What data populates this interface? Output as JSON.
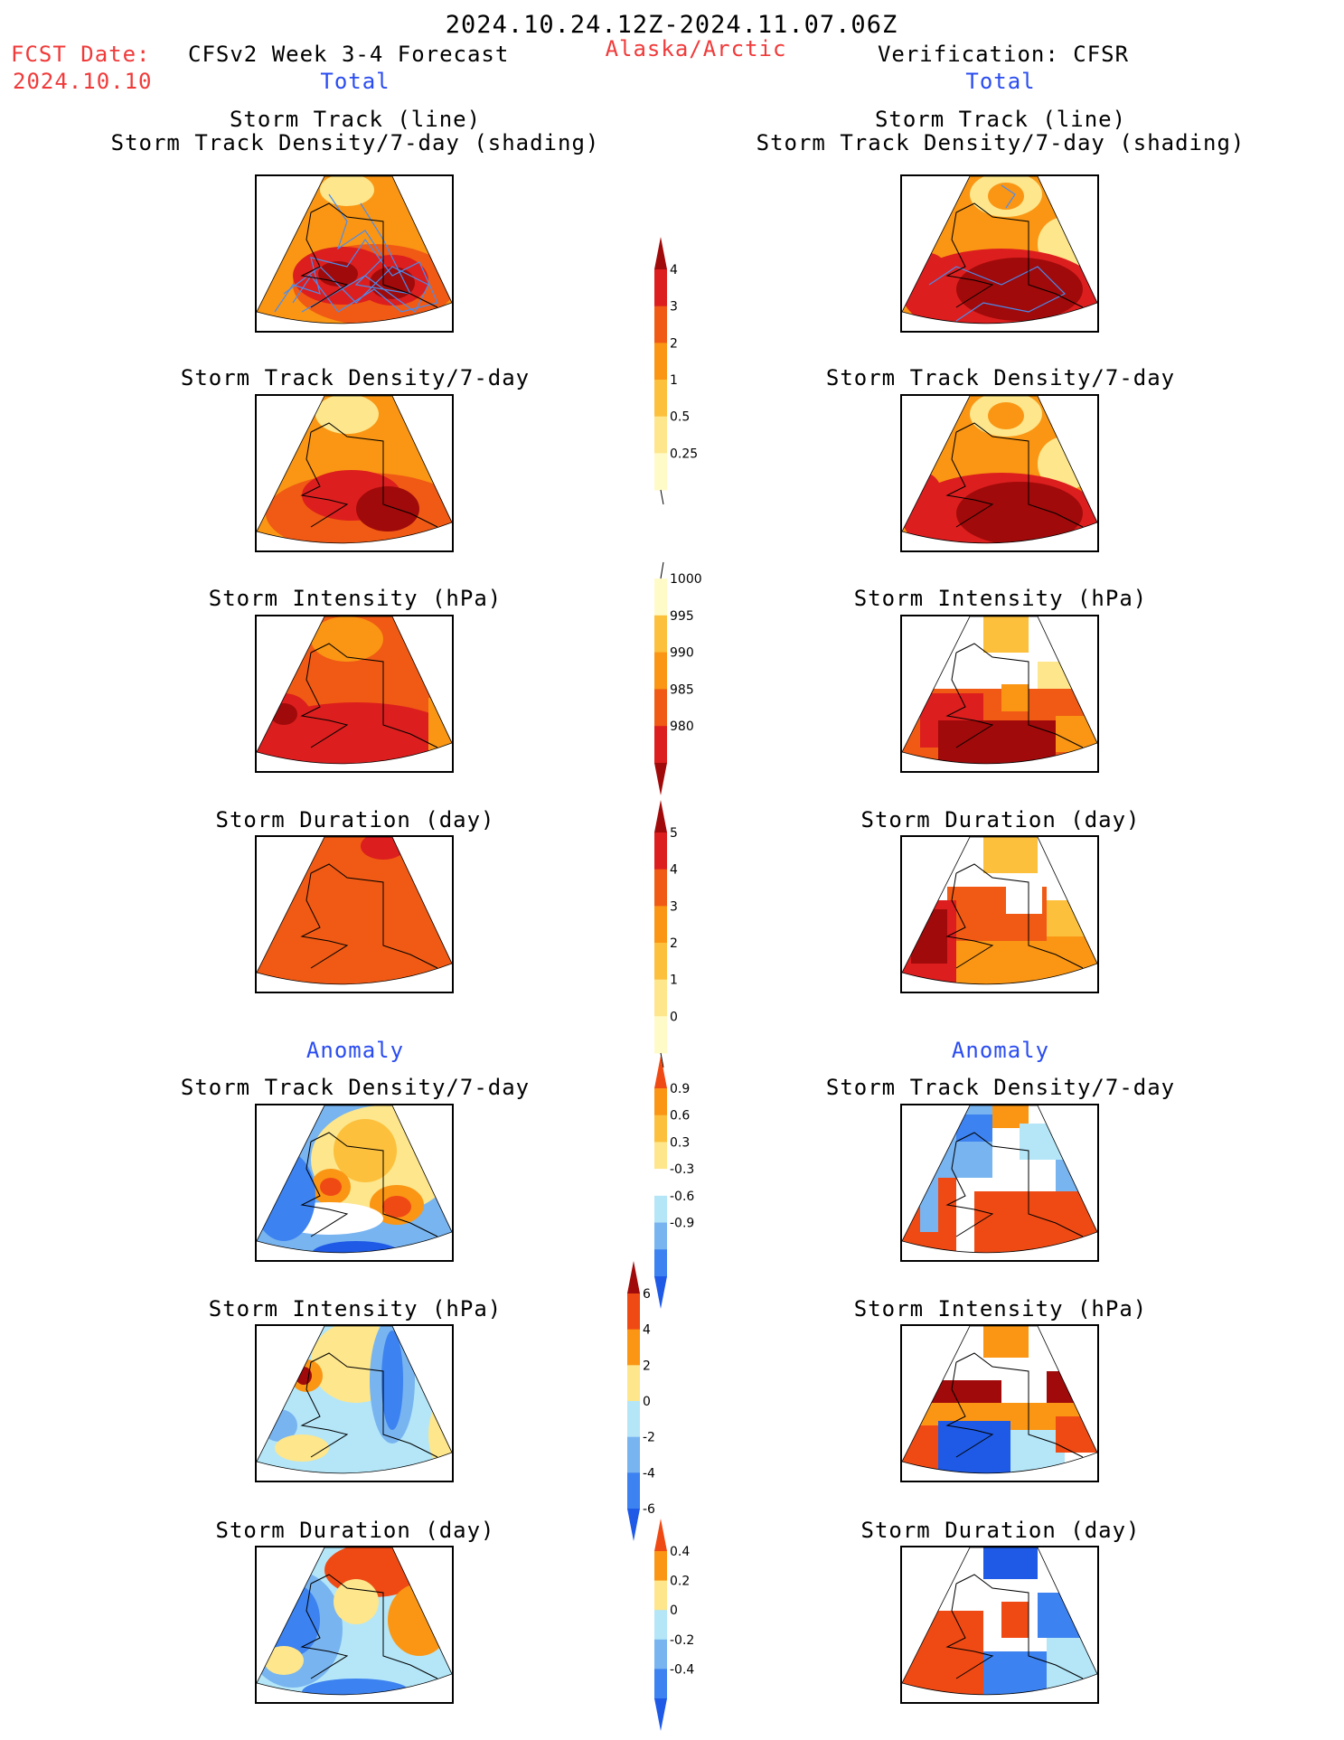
{
  "header": {
    "date_range": "2024.10.24.12Z-2024.11.07.06Z",
    "fcst_label": "FCST Date:",
    "fcst_date": "2024.10.10",
    "model": "CFSv2 Week 3-4 Forecast",
    "region": "Alaska/Arctic",
    "verification": "Verification: CFSR"
  },
  "sections": {
    "total": "Total",
    "anomaly": "Anomaly"
  },
  "panel_titles": {
    "track_line": "Storm Track (line)",
    "track_shading": "Storm Track Density/7-day (shading)",
    "density": "Storm Track Density/7-day",
    "intensity": "Storm Intensity (hPa)",
    "duration": "Storm Duration (day)"
  },
  "colorbars": {
    "density_total": {
      "labels": [
        "4",
        "3",
        "2",
        "1",
        "0.5",
        "0.25"
      ],
      "colors": [
        "#a00a0a",
        "#dc1e1e",
        "#f05a14",
        "#fa9614",
        "#fcc03c",
        "#fde68c",
        "#fffbc8"
      ]
    },
    "intensity_total": {
      "labels": [
        "1000",
        "995",
        "990",
        "985",
        "980"
      ],
      "colors": [
        "#fffbc8",
        "#fcc03c",
        "#fa9614",
        "#f05a14",
        "#dc1e1e",
        "#a00a0a"
      ]
    },
    "duration_total": {
      "labels": [
        "5",
        "4",
        "3",
        "2",
        "1",
        "0"
      ],
      "colors": [
        "#a00a0a",
        "#dc1e1e",
        "#f05a14",
        "#fa9614",
        "#fcc03c",
        "#fde68c",
        "#fffbc8"
      ]
    },
    "density_anom": {
      "labels": [
        "0.9",
        "0.6",
        "0.3",
        "-0.3",
        "-0.6",
        "-0.9"
      ],
      "colors": [
        "#f04a14",
        "#fa9614",
        "#fcc03c",
        "#fde68c",
        "#ffffff",
        "#b4e6f8",
        "#78b4f0",
        "#3c82f0",
        "#1e5ae6"
      ]
    },
    "intensity_anom": {
      "labels": [
        "6",
        "4",
        "2",
        "0",
        "-2",
        "-4",
        "-6"
      ],
      "colors": [
        "#a00a0a",
        "#f04a14",
        "#fa9614",
        "#fde68c",
        "#b4e6f8",
        "#78b4f0",
        "#3c82f0",
        "#1e5ae6"
      ]
    },
    "duration_anom": {
      "labels": [
        "0.4",
        "0.2",
        "0",
        "-0.2",
        "-0.4"
      ],
      "colors": [
        "#f04a14",
        "#fa9614",
        "#fde68c",
        "#b4e6f8",
        "#78b4f0",
        "#3c82f0",
        "#1e5ae6"
      ]
    }
  }
}
